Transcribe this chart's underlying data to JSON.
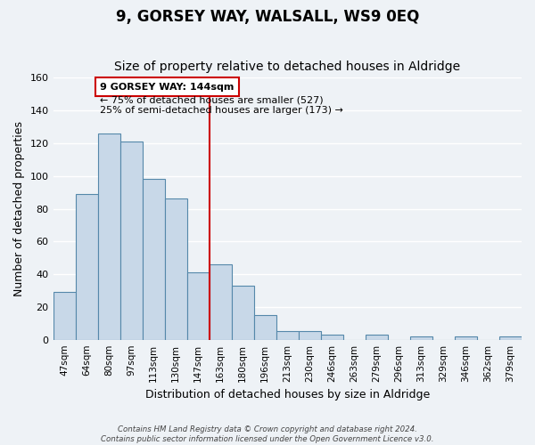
{
  "title": "9, GORSEY WAY, WALSALL, WS9 0EQ",
  "subtitle": "Size of property relative to detached houses in Aldridge",
  "xlabel": "Distribution of detached houses by size in Aldridge",
  "ylabel": "Number of detached properties",
  "bar_labels": [
    "47sqm",
    "64sqm",
    "80sqm",
    "97sqm",
    "113sqm",
    "130sqm",
    "147sqm",
    "163sqm",
    "180sqm",
    "196sqm",
    "213sqm",
    "230sqm",
    "246sqm",
    "263sqm",
    "279sqm",
    "296sqm",
    "313sqm",
    "329sqm",
    "346sqm",
    "362sqm",
    "379sqm"
  ],
  "bar_values": [
    29,
    89,
    126,
    121,
    98,
    86,
    41,
    46,
    33,
    15,
    5,
    5,
    3,
    0,
    3,
    0,
    2,
    0,
    2,
    0,
    2
  ],
  "bar_color": "#c8d8e8",
  "bar_edge_color": "#5588aa",
  "vline_x_index": 6,
  "vline_color": "#cc0000",
  "ylim": [
    0,
    160
  ],
  "yticks": [
    0,
    20,
    40,
    60,
    80,
    100,
    120,
    140,
    160
  ],
  "annotation_title": "9 GORSEY WAY: 144sqm",
  "annotation_line1": "← 75% of detached houses are smaller (527)",
  "annotation_line2": "25% of semi-detached houses are larger (173) →",
  "annotation_box_color": "#ffffff",
  "annotation_box_edge": "#cc0000",
  "footer_line1": "Contains HM Land Registry data © Crown copyright and database right 2024.",
  "footer_line2": "Contains public sector information licensed under the Open Government Licence v3.0.",
  "background_color": "#eef2f6",
  "grid_color": "#ffffff",
  "title_fontsize": 12,
  "subtitle_fontsize": 10,
  "xlabel_fontsize": 9,
  "ylabel_fontsize": 9
}
